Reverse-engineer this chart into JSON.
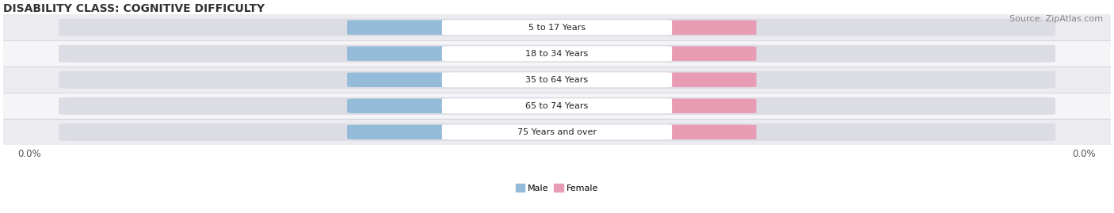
{
  "title": "DISABILITY CLASS: COGNITIVE DIFFICULTY",
  "source": "Source: ZipAtlas.com",
  "categories": [
    "5 to 17 Years",
    "18 to 34 Years",
    "35 to 64 Years",
    "65 to 74 Years",
    "75 Years and over"
  ],
  "male_values": [
    0.0,
    0.0,
    0.0,
    0.0,
    0.0
  ],
  "female_values": [
    0.0,
    0.0,
    0.0,
    0.0,
    0.0
  ],
  "male_color": "#94bcd8",
  "female_color": "#e89cb4",
  "bar_bg_color": "#dcdce4",
  "row_bg_odd": "#ebebf0",
  "row_bg_even": "#f5f5f8",
  "male_label": "Male",
  "female_label": "Female",
  "bar_height": 0.62,
  "title_fontsize": 10,
  "source_fontsize": 8,
  "tick_fontsize": 8.5,
  "val_fontsize": 7.5,
  "cat_fontsize": 8,
  "figsize": [
    14.06,
    2.69
  ],
  "dpi": 100
}
